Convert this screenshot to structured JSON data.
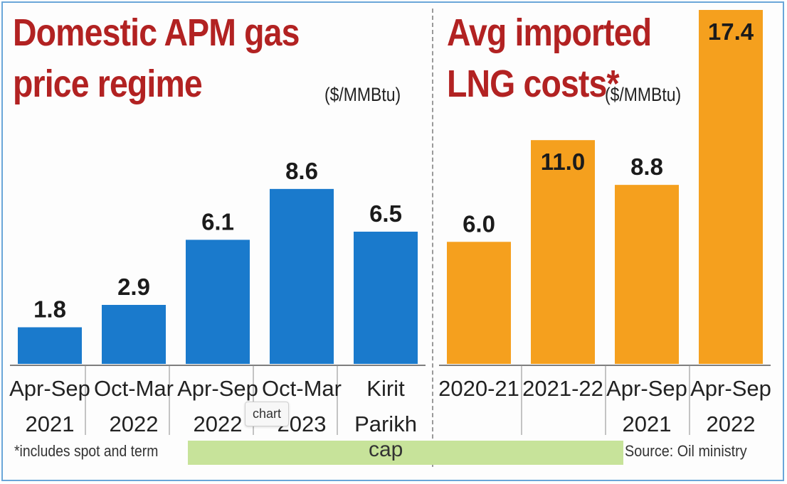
{
  "chart_data": [
    {
      "type": "bar",
      "title": "Domestic APM gas price regime",
      "unit": "($/MMBtu)",
      "color": "#1a7acc",
      "categories": [
        [
          "Apr-Sep",
          "2021"
        ],
        [
          "Oct-Mar",
          "2022"
        ],
        [
          "Apr-Sep",
          "2022"
        ],
        [
          "Oct-Mar",
          "2023"
        ],
        [
          "Kirit",
          "Parikh"
        ]
      ],
      "values": [
        1.8,
        2.9,
        6.1,
        8.6,
        6.5
      ],
      "value_labels": [
        "1.8",
        "2.9",
        "6.1",
        "8.6",
        "6.5"
      ],
      "ylim": [
        0,
        17.4
      ]
    },
    {
      "type": "bar",
      "title": "Avg imported LNG costs*",
      "unit": "($/MMBtu)",
      "color": "#f5a01e",
      "categories": [
        [
          "2020-21"
        ],
        [
          "2021-22"
        ],
        [
          "Apr-Sep",
          "2021"
        ],
        [
          "Apr-Sep",
          "2022"
        ]
      ],
      "values": [
        6.0,
        11.0,
        8.8,
        17.4
      ],
      "value_labels": [
        "6.0",
        "11.0",
        "8.8",
        "17.4"
      ],
      "ylim": [
        0,
        17.4
      ]
    }
  ],
  "titles": {
    "left_line1": "Domestic APM gas",
    "left_line2": "price regime",
    "left_unit": "($/MMBtu)",
    "right_line1": "Avg imported",
    "right_line2": "LNG costs*",
    "right_unit": "($/MMBtu)"
  },
  "footer": {
    "footnote": "*includes spot and term",
    "cap_label": "cap",
    "source": "Source: Oil ministry",
    "cap_color": "#c7e39a"
  },
  "tooltip": "chart"
}
